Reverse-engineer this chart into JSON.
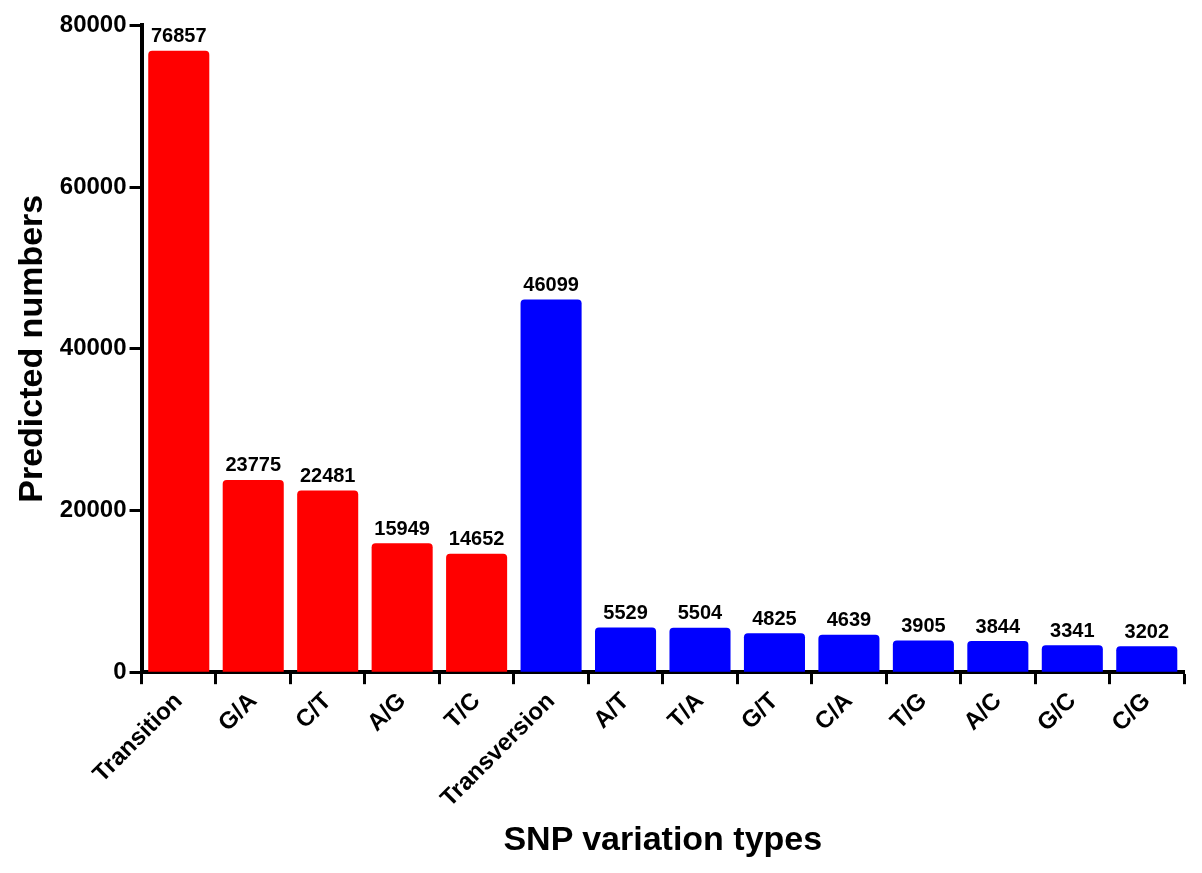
{
  "chart_data": {
    "type": "bar",
    "xlabel": "SNP variation types",
    "ylabel": "Predicted numbers",
    "categories": [
      "Transition",
      "G/A",
      "C/T",
      "A/G",
      "T/C",
      "Transversion",
      "A/T",
      "T/A",
      "G/T",
      "C/A",
      "T/G",
      "A/C",
      "G/C",
      "C/G"
    ],
    "values": [
      76857,
      23775,
      22481,
      15949,
      14652,
      46099,
      5529,
      5504,
      4825,
      4639,
      3905,
      3844,
      3341,
      3202
    ],
    "colors": [
      "#ff0000",
      "#ff0000",
      "#ff0000",
      "#ff0000",
      "#ff0000",
      "#0000ff",
      "#0000ff",
      "#0000ff",
      "#0000ff",
      "#0000ff",
      "#0000ff",
      "#0000ff",
      "#0000ff",
      "#0000ff"
    ],
    "ylim": [
      0,
      80000
    ],
    "yticks": [
      0,
      20000,
      40000,
      60000,
      80000
    ],
    "grid": false,
    "legend": false,
    "data_labels": true
  }
}
